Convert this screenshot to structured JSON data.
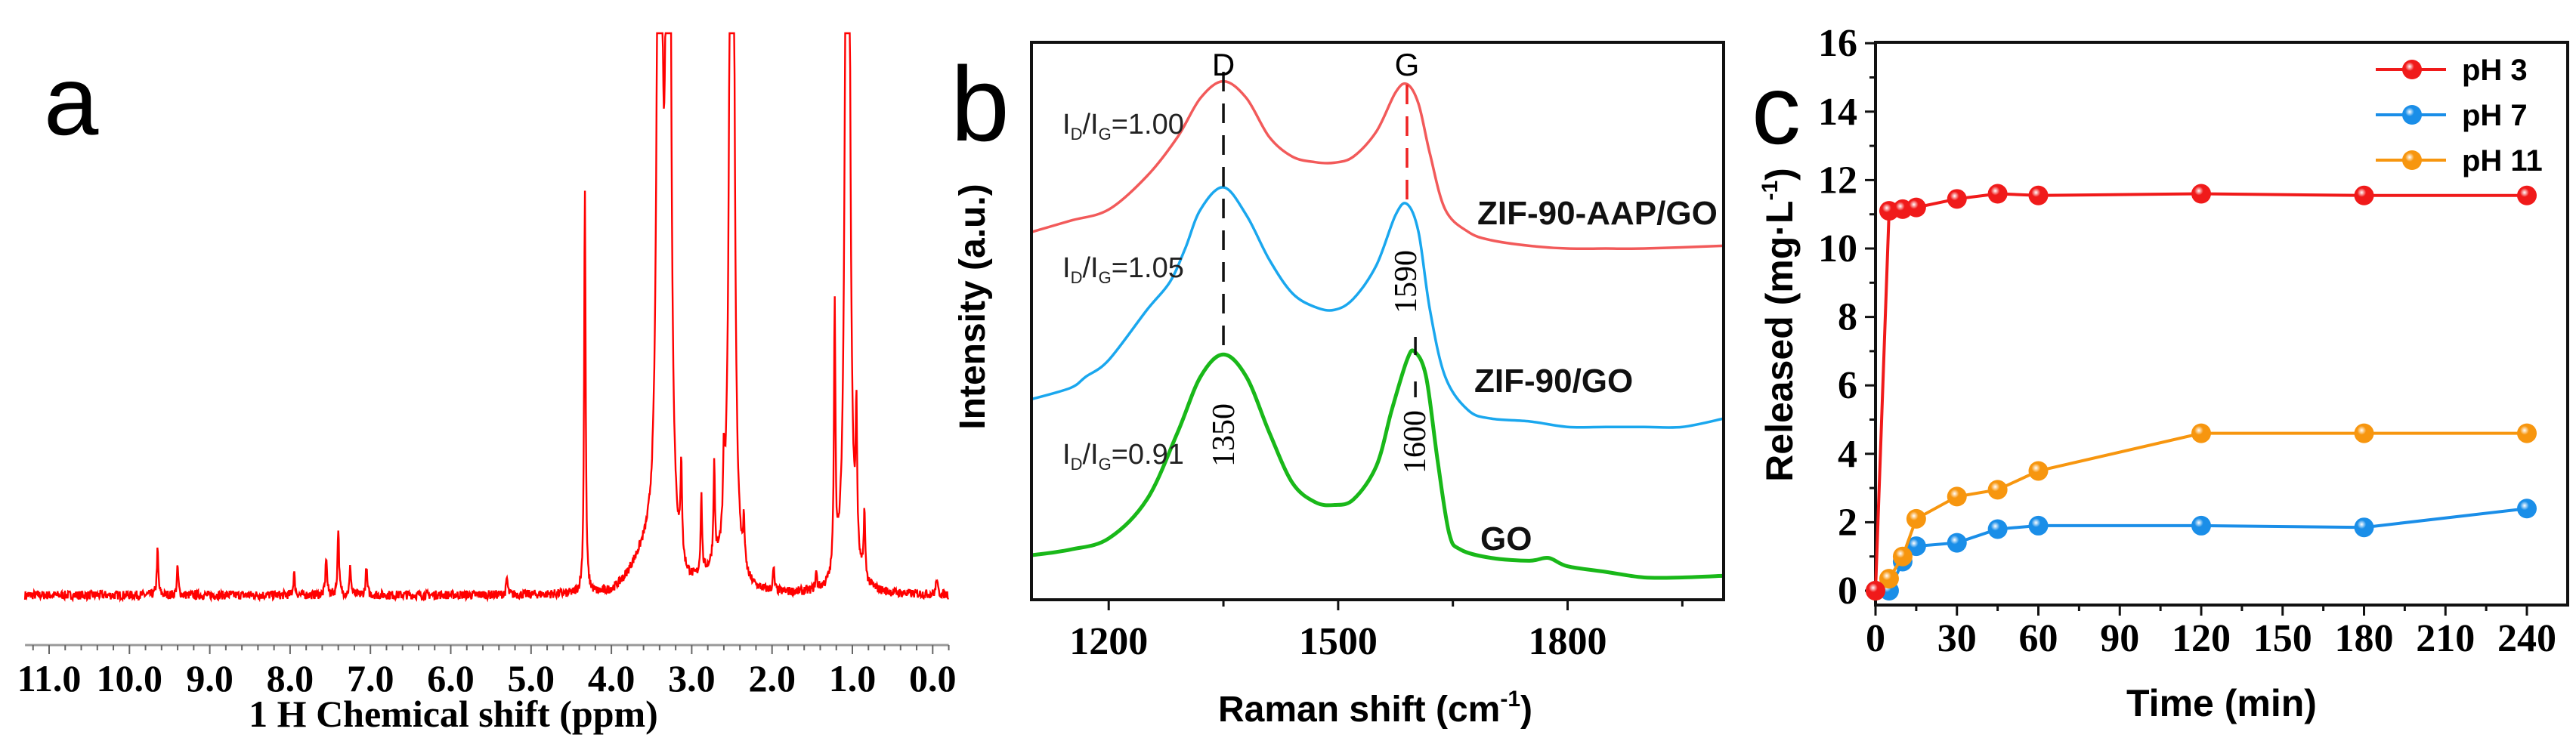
{
  "panel_labels": {
    "a": "a",
    "b": "b",
    "c": "c"
  },
  "chart_data": [
    {
      "panel": "a",
      "type": "line",
      "title": "",
      "xlabel": "1 H Chemical shift (ppm)",
      "ylabel": "",
      "xlim": [
        11.3,
        -0.2
      ],
      "ylim": [
        0,
        100
      ],
      "color": "#ff0000",
      "xticks": [
        {
          "value": 11,
          "label": "11.0"
        },
        {
          "value": 10,
          "label": "10.0"
        },
        {
          "value": 9,
          "label": "9.0"
        },
        {
          "value": 8,
          "label": "8.0"
        },
        {
          "value": 7,
          "label": "7.0"
        },
        {
          "value": 6,
          "label": "6.0"
        },
        {
          "value": 5,
          "label": "5.0"
        },
        {
          "value": 4,
          "label": "4.0"
        },
        {
          "value": 3,
          "label": "3.0"
        },
        {
          "value": 2,
          "label": "2.0"
        },
        {
          "value": 1,
          "label": "1.0"
        },
        {
          "value": 0,
          "label": "0.0"
        }
      ],
      "peaks": [
        {
          "ppm": 9.65,
          "intensity": 8
        },
        {
          "ppm": 9.4,
          "intensity": 5
        },
        {
          "ppm": 7.95,
          "intensity": 4
        },
        {
          "ppm": 7.55,
          "intensity": 7
        },
        {
          "ppm": 7.4,
          "intensity": 12
        },
        {
          "ppm": 7.25,
          "intensity": 5
        },
        {
          "ppm": 7.05,
          "intensity": 5
        },
        {
          "ppm": 5.3,
          "intensity": 3
        },
        {
          "ppm": 4.33,
          "intensity": 72
        },
        {
          "ppm": 3.4,
          "intensity": 300
        },
        {
          "ppm": 3.29,
          "intensity": 300
        },
        {
          "ppm": 3.13,
          "intensity": 17
        },
        {
          "ppm": 2.88,
          "intensity": 14
        },
        {
          "ppm": 2.72,
          "intensity": 17
        },
        {
          "ppm": 2.6,
          "intensity": 12
        },
        {
          "ppm": 2.5,
          "intensity": 300
        },
        {
          "ppm": 2.35,
          "intensity": 8
        },
        {
          "ppm": 1.98,
          "intensity": 4
        },
        {
          "ppm": 1.45,
          "intensity": 3
        },
        {
          "ppm": 1.22,
          "intensity": 48
        },
        {
          "ppm": 1.06,
          "intensity": 300
        },
        {
          "ppm": 0.95,
          "intensity": 25
        },
        {
          "ppm": 0.85,
          "intensity": 12
        },
        {
          "ppm": -0.05,
          "intensity": 3
        }
      ]
    },
    {
      "panel": "b",
      "type": "line",
      "xlabel": "Raman shift (cm",
      "xlabel_sup": "-1",
      "xlabel_end": ")",
      "ylabel": "Intensity (a.u.)",
      "xlim": [
        1099,
        2004
      ],
      "ylim": [
        0,
        100
      ],
      "xticks": [
        {
          "value": 1200,
          "label": "1200"
        },
        {
          "value": 1500,
          "label": "1500"
        },
        {
          "value": 1800,
          "label": "1800"
        }
      ],
      "band_labels": [
        {
          "label": "D",
          "value": 1350
        },
        {
          "label": "G",
          "value": 1590
        }
      ],
      "position_labels": [
        {
          "label": "1350",
          "value": 1350
        },
        {
          "label": "1590",
          "value": 1590
        },
        {
          "label": "1600",
          "value": 1600
        }
      ],
      "ratio_label": {
        "i": "I",
        "d": "D",
        "sep": "/I",
        "g": "G",
        "eq": "="
      },
      "series": [
        {
          "name": "ZIF-90-AAP/GO",
          "color": "#f25a5a",
          "ratio": "1.00",
          "x": [
            1100,
            1150,
            1200,
            1250,
            1290,
            1320,
            1350,
            1380,
            1410,
            1440,
            1470,
            1495,
            1520,
            1550,
            1575,
            1590,
            1605,
            1620,
            1640,
            1670,
            1700,
            1750,
            1800,
            1850,
            1900,
            2004
          ],
          "y": [
            66,
            68,
            70,
            76,
            83,
            90,
            93,
            90,
            83,
            79.5,
            78.5,
            78.4,
            79.5,
            84,
            91,
            92.5,
            89,
            80,
            70,
            66,
            64.5,
            63.5,
            63,
            63,
            63,
            63.5
          ]
        },
        {
          "name": "ZIF-90/GO",
          "color": "#1aa7ee",
          "ratio": "1.05",
          "x": [
            1100,
            1150,
            1170,
            1200,
            1250,
            1280,
            1300,
            1320,
            1350,
            1380,
            1410,
            1440,
            1470,
            1495,
            1520,
            1550,
            1575,
            1590,
            1605,
            1620,
            1640,
            1670,
            1700,
            1750,
            1800,
            1850,
            1900,
            1950,
            2004
          ],
          "y": [
            36,
            38,
            40,
            43,
            52,
            57,
            63,
            70,
            74,
            69,
            61,
            55,
            52.5,
            52,
            54,
            60,
            69,
            71,
            66,
            52,
            40,
            34,
            32.5,
            32,
            31,
            31,
            31,
            31,
            32.5
          ]
        },
        {
          "name": "GO",
          "color": "#19b819",
          "ratio": "0.91",
          "x": [
            1100,
            1150,
            1200,
            1250,
            1290,
            1320,
            1350,
            1380,
            1410,
            1440,
            1470,
            1495,
            1520,
            1550,
            1570,
            1590,
            1600,
            1615,
            1630,
            1645,
            1660,
            1700,
            1750,
            1775,
            1800,
            1850,
            1900,
            1950,
            2004
          ],
          "y": [
            8,
            9,
            11,
            18,
            30,
            40,
            44,
            40,
            30,
            21,
            17.5,
            17,
            18,
            24,
            34,
            43,
            44.5,
            40,
            25,
            12,
            9,
            7.5,
            7,
            7.5,
            6,
            5,
            4,
            4,
            4.3
          ]
        }
      ]
    },
    {
      "panel": "c",
      "type": "line",
      "xlabel": "Time (min)",
      "ylabel": "Released (mg·L",
      "ylabel_sup": "-1",
      "ylabel_end": ")",
      "xlim": [
        0,
        255
      ],
      "ylim": [
        -0.42,
        16
      ],
      "xticks": [
        0,
        30,
        60,
        90,
        120,
        150,
        180,
        210,
        240
      ],
      "yticks": [
        0,
        2,
        4,
        6,
        8,
        10,
        12,
        14,
        16
      ],
      "legend_position": "top-right",
      "series": [
        {
          "name": "pH 3",
          "color": "#f01a1a",
          "x": [
            0,
            5,
            10,
            15,
            30,
            45,
            60,
            120,
            180,
            240
          ],
          "y": [
            0,
            11.1,
            11.15,
            11.2,
            11.45,
            11.6,
            11.55,
            11.6,
            11.55,
            11.55
          ]
        },
        {
          "name": "pH 7",
          "color": "#1a8ee8",
          "x": [
            0,
            5,
            10,
            15,
            30,
            45,
            60,
            120,
            180,
            240
          ],
          "y": [
            0,
            0,
            0.85,
            1.3,
            1.4,
            1.8,
            1.9,
            1.9,
            1.85,
            2.4
          ]
        },
        {
          "name": "pH 11",
          "color": "#f7960f",
          "x": [
            0,
            5,
            10,
            15,
            30,
            45,
            60,
            120,
            180,
            240
          ],
          "y": [
            0,
            0.35,
            1.0,
            2.1,
            2.75,
            2.95,
            3.5,
            4.6,
            4.6,
            4.6
          ]
        }
      ]
    }
  ]
}
